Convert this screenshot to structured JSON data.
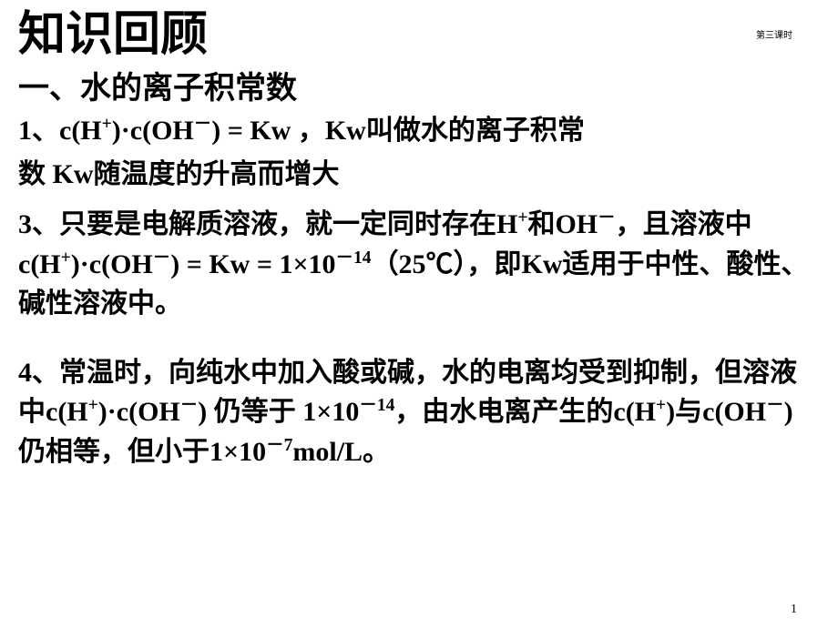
{
  "topLabel": "第三课时",
  "mainTitle": "知识回顾",
  "sectionHeading": "一、水的离子积常数",
  "item1_part1": "1、c(H",
  "item1_sup1": "+",
  "item1_part2": ")·c(OH",
  "item1_sup2": "－",
  "item1_part3": ") = Kw ，Kw叫做水的离子积常",
  "item2_line": "数  Kw随温度的升高而增大",
  "item3_part1": "3、只要是电解质溶液，就一定同时存在H",
  "item3_sup1": "+",
  "item3_part2": "和OH",
  "item3_sup2": "－",
  "item3_part3": "，且溶液中c(H",
  "item3_sup3": "+",
  "item3_part4": ")·c(OH",
  "item3_sup4": "－",
  "item3_part5": ") = Kw = 1×10",
  "item3_sup5": "－14",
  "item3_part6": "（25℃），即Kw适用于中性、酸性、碱性溶液中。",
  "item4_part1": "4、常温时，向纯水中加入酸或碱，水的电离均受到抑制，但溶液中c(H",
  "item4_sup1": "+",
  "item4_part2": ")·c(OH",
  "item4_sup2": "－",
  "item4_part3": ") 仍等于 1×10",
  "item4_sup3": "－14",
  "item4_part4": "，由水电离产生的c(H",
  "item4_sup4": "+",
  "item4_part5": ")与c(OH",
  "item4_sup5": "－",
  "item4_part6": ") 仍相等，但小于1×10",
  "item4_sup6": "－7",
  "item4_part7": "mol/L。",
  "pageNumber": "1",
  "colors": {
    "background": "#ffffff",
    "text": "#000000"
  },
  "fonts": {
    "titleFamily": "KaiTi",
    "bodyFamily": "SimSun",
    "titleSize": 52,
    "headingSize": 34,
    "bodySize": 30,
    "labelSize": 10,
    "pageNumSize": 14
  }
}
